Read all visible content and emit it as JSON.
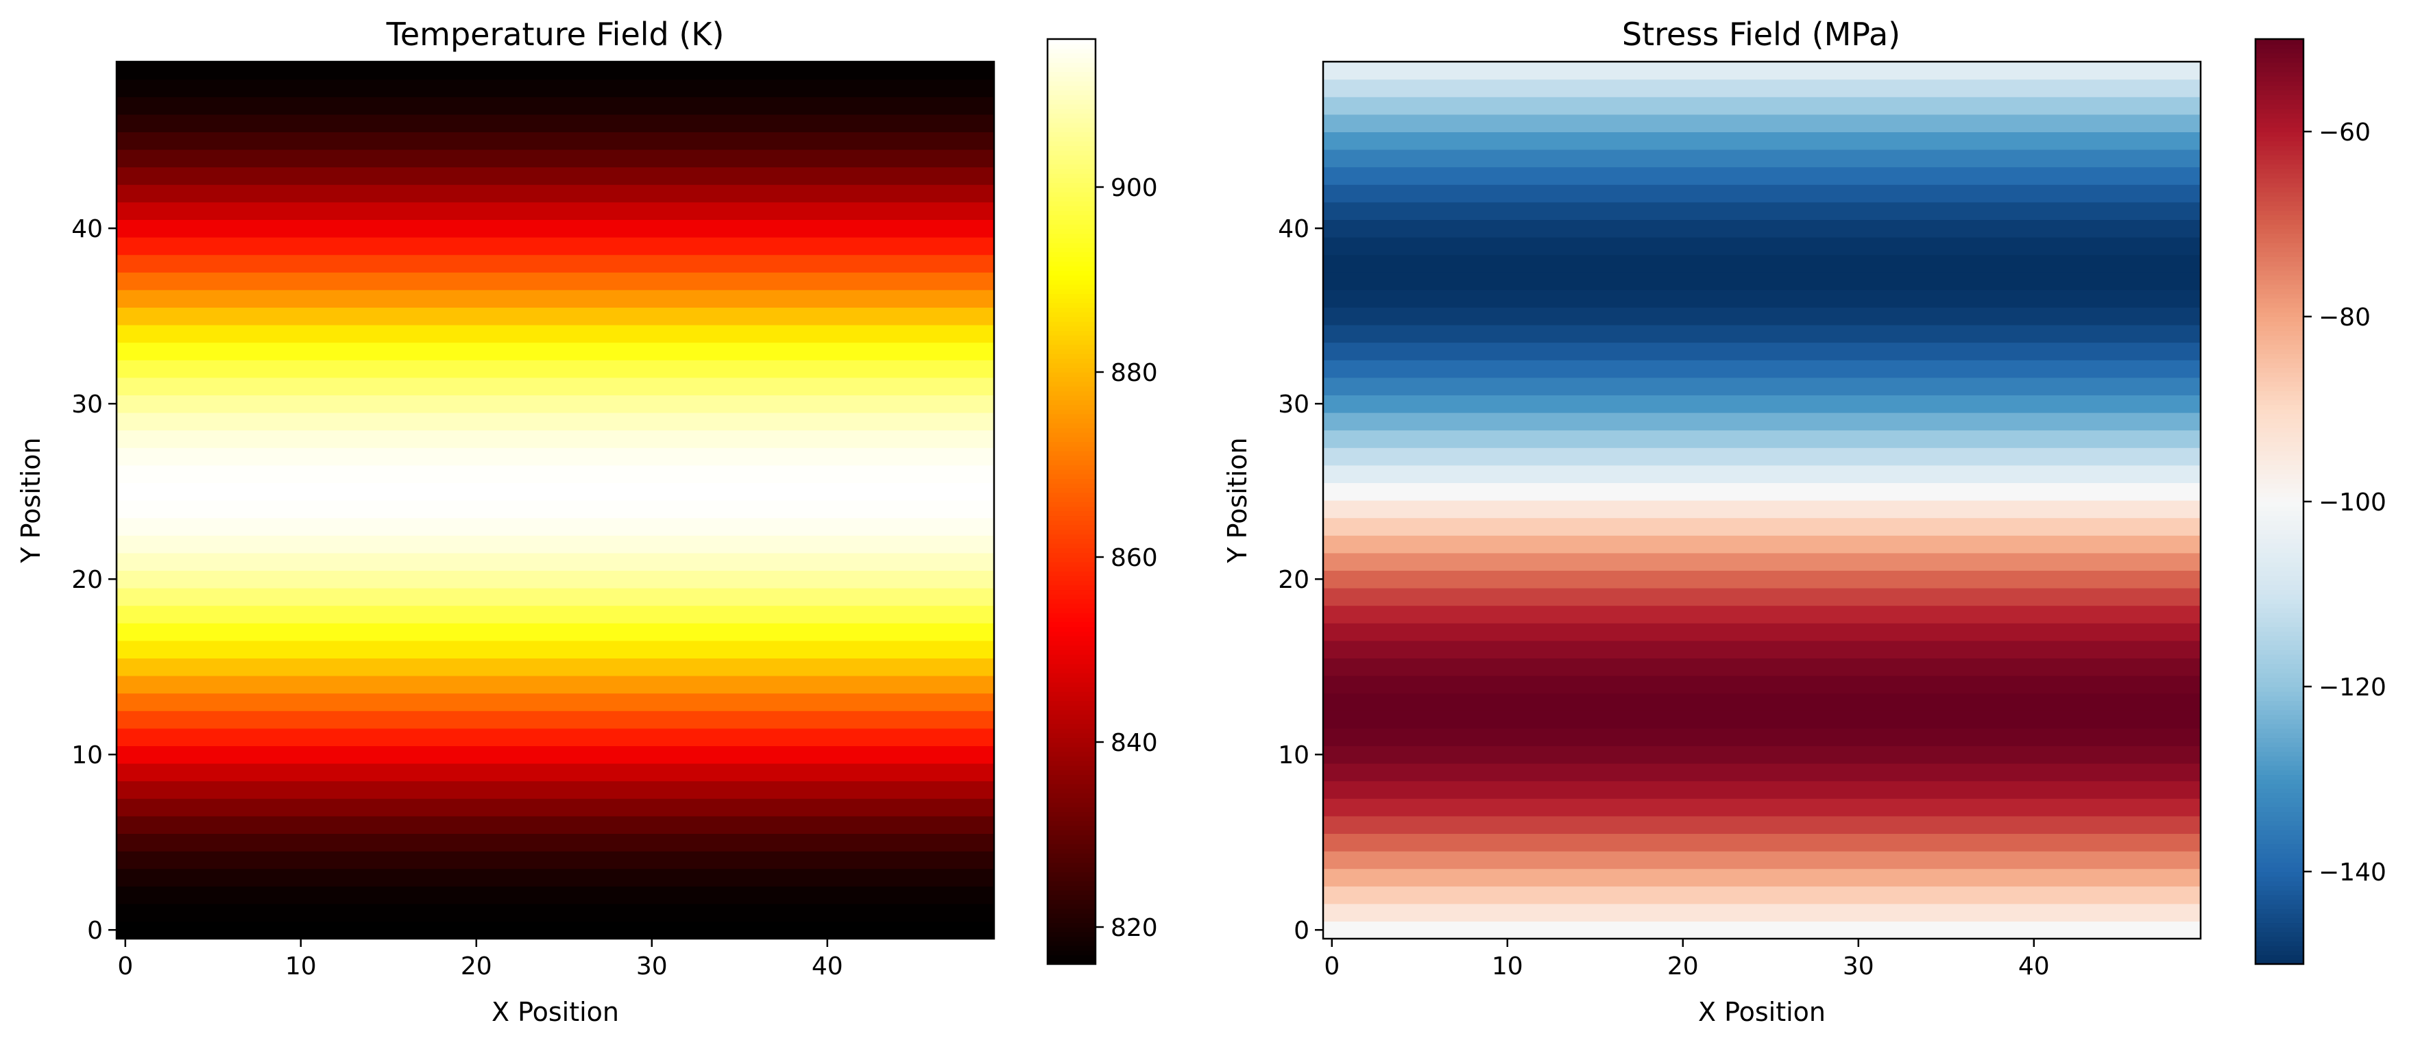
{
  "chart_data": [
    {
      "type": "heatmap",
      "title": "Temperature Field (K)",
      "xlabel": "X Position",
      "ylabel": "Y Position",
      "grid_size": [
        50,
        50
      ],
      "xlim": [
        -0.5,
        49.5
      ],
      "ylim": [
        -0.5,
        49.5
      ],
      "x_ticks": [
        0,
        10,
        20,
        30,
        40
      ],
      "y_ticks": [
        0,
        10,
        20,
        30,
        40
      ],
      "colormap": "hot",
      "colorbar": {
        "min": 816,
        "max": 916,
        "ticks": [
          820,
          840,
          860,
          880,
          900
        ]
      },
      "field": {
        "variation": "rows",
        "mean": 866,
        "amplitude": 50,
        "period_rows": 50,
        "phase_row": 12.5
      }
    },
    {
      "type": "heatmap",
      "title": "Stress Field (MPa)",
      "xlabel": "X Position",
      "ylabel": "Y Position",
      "grid_size": [
        50,
        50
      ],
      "xlim": [
        -0.5,
        49.5
      ],
      "ylim": [
        -0.5,
        49.5
      ],
      "x_ticks": [
        0,
        10,
        20,
        30,
        40
      ],
      "y_ticks": [
        0,
        10,
        20,
        30,
        40
      ],
      "colormap": "RdBu_r",
      "colorbar": {
        "min": -150,
        "max": -50,
        "ticks": [
          -140,
          -120,
          -100,
          -80,
          -60
        ]
      },
      "field": {
        "variation": "rows",
        "mean": -100,
        "amplitude": 50,
        "period_rows": 50,
        "phase_row": 0
      }
    }
  ]
}
